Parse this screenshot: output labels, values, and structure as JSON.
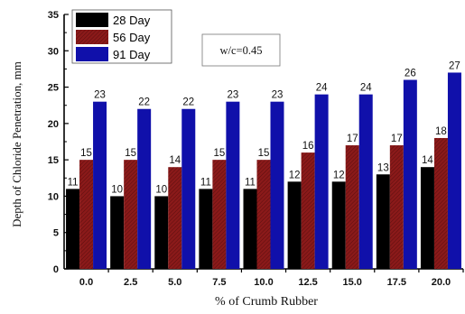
{
  "chart_data": {
    "type": "bar",
    "categories": [
      "0.0",
      "2.5",
      "5.0",
      "7.5",
      "10.0",
      "12.5",
      "15.0",
      "17.5",
      "20.0"
    ],
    "series": [
      {
        "name": "28 Day",
        "values": [
          11,
          10,
          10,
          11,
          11,
          12,
          12,
          13,
          14
        ],
        "color": "#000000"
      },
      {
        "name": "56 Day",
        "values": [
          15,
          15,
          14,
          15,
          15,
          16,
          17,
          17,
          18
        ],
        "color": "#8B1A1A"
      },
      {
        "name": "91 Day",
        "values": [
          23,
          22,
          22,
          23,
          23,
          24,
          24,
          26,
          27
        ],
        "color": "#1010AA"
      }
    ],
    "xlabel": "% of Crumb Rubber",
    "ylabel": "Depth of Chloride Penetration, mm",
    "ylim": [
      0,
      35
    ],
    "yticks": [
      "0",
      "5",
      "10",
      "15",
      "20",
      "25",
      "30",
      "35"
    ],
    "annotation": "w/c=0.45",
    "legend_position": "top-left",
    "grid": false
  }
}
